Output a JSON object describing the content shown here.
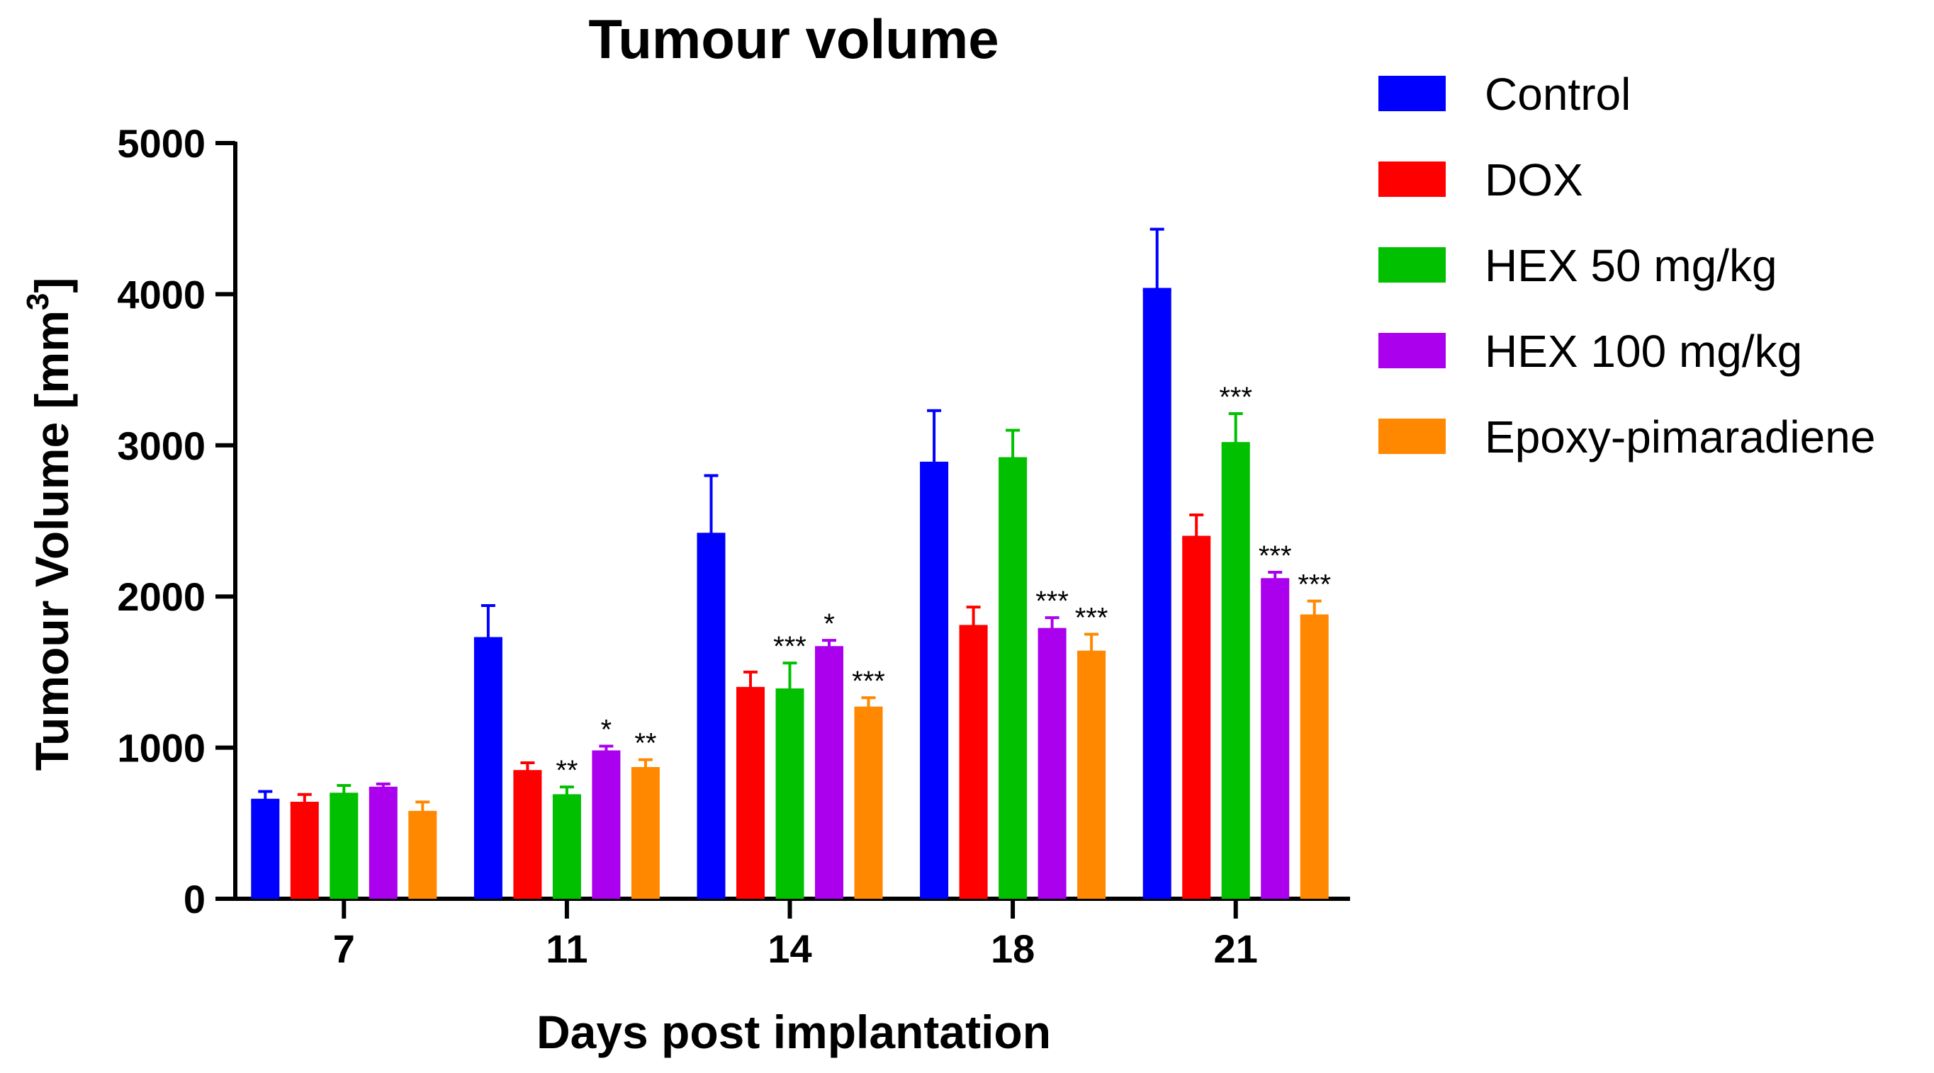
{
  "chart_data": {
    "type": "bar",
    "title": "Tumour volume",
    "xlabel": "Days post implantation",
    "ylabel_main": "Tumour Volume [mm",
    "ylabel_sup": "3",
    "ylabel_close": "]",
    "ylim": [
      0,
      5000
    ],
    "yticks": [
      {
        "value": 0,
        "label": "0"
      },
      {
        "value": 1000,
        "label": "1000"
      },
      {
        "value": 2000,
        "label": "2000"
      },
      {
        "value": 3000,
        "label": "3000"
      },
      {
        "value": 4000,
        "label": "4000"
      },
      {
        "value": 5000,
        "label": "5000"
      }
    ],
    "categories": [
      "7",
      "11",
      "14",
      "18",
      "21"
    ],
    "legend_position": "right",
    "series": [
      {
        "name": "Control",
        "color": "#0000ff",
        "values": [
          650,
          1720,
          2410,
          2880,
          4030
        ],
        "errors": [
          60,
          220,
          390,
          350,
          400
        ],
        "significance": [
          "",
          "",
          "",
          "",
          ""
        ]
      },
      {
        "name": "DOX",
        "color": "#ff0000",
        "values": [
          630,
          840,
          1390,
          1800,
          2390
        ],
        "errors": [
          60,
          60,
          110,
          130,
          150
        ],
        "significance": [
          "",
          "",
          "",
          "",
          ""
        ]
      },
      {
        "name": "HEX 50 mg/kg",
        "color": "#00c000",
        "values": [
          690,
          680,
          1380,
          2910,
          3010
        ],
        "errors": [
          60,
          60,
          180,
          190,
          200
        ],
        "significance": [
          "",
          "**",
          "***",
          "",
          "***"
        ]
      },
      {
        "name": "HEX 100 mg/kg",
        "color": "#aa00ee",
        "values": [
          730,
          970,
          1660,
          1780,
          2110
        ],
        "errors": [
          30,
          40,
          50,
          80,
          50
        ],
        "significance": [
          "",
          "*",
          "*",
          "***",
          "***"
        ]
      },
      {
        "name": "Epoxy-pimaradiene",
        "color": "#ff8800",
        "values": [
          570,
          860,
          1260,
          1630,
          1870
        ],
        "errors": [
          70,
          60,
          70,
          120,
          100
        ],
        "significance": [
          "",
          "**",
          "***",
          "***",
          "***"
        ]
      }
    ]
  }
}
